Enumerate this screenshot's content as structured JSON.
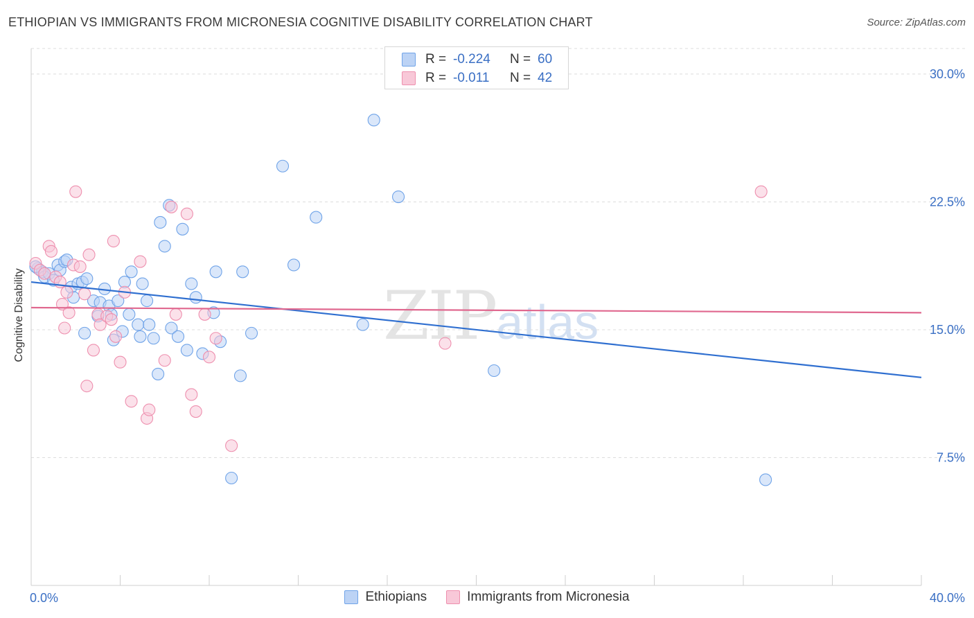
{
  "title": "ETHIOPIAN VS IMMIGRANTS FROM MICRONESIA COGNITIVE DISABILITY CORRELATION CHART",
  "source": "Source: ZipAtlas.com",
  "watermark": {
    "zip": "ZIP",
    "atlas": "atlas"
  },
  "legend": {
    "rows": [
      {
        "r_label": "R =",
        "r_value": "-0.224",
        "n_label": "N =",
        "n_value": "60"
      },
      {
        "r_label": "R =",
        "r_value": "-0.011",
        "n_label": "N =",
        "n_value": "42"
      }
    ]
  },
  "chart_data": {
    "type": "scatter",
    "xlabel": "",
    "ylabel": "Cognitive Disability",
    "xlim": [
      0,
      40
    ],
    "ylim": [
      0,
      31.5
    ],
    "x_tick_labels": [
      "0.0%",
      "40.0%"
    ],
    "y_ticks": [
      7.5,
      15.0,
      22.5,
      30.0
    ],
    "y_tick_labels": [
      "7.5%",
      "15.0%",
      "22.5%",
      "30.0%"
    ],
    "grid": "horizontal dashed",
    "legend_position": "bottom",
    "series": [
      {
        "name": "Ethiopians",
        "color": "#6fa3e8",
        "fill": "#bcd3f5",
        "trend": {
          "x": [
            0,
            40
          ],
          "y": [
            17.8,
            12.2
          ]
        },
        "points": [
          [
            0.3,
            18.6
          ],
          [
            0.5,
            18.4
          ],
          [
            0.6,
            18.1
          ],
          [
            0.8,
            18.3
          ],
          [
            1.0,
            17.9
          ],
          [
            1.2,
            18.8
          ],
          [
            1.3,
            18.5
          ],
          [
            1.5,
            19.0
          ],
          [
            1.6,
            19.1
          ],
          [
            1.8,
            17.5
          ],
          [
            1.9,
            16.9
          ],
          [
            2.1,
            17.7
          ],
          [
            2.3,
            17.8
          ],
          [
            2.5,
            18.0
          ],
          [
            2.4,
            14.8
          ],
          [
            2.8,
            16.7
          ],
          [
            3.0,
            15.8
          ],
          [
            3.1,
            16.6
          ],
          [
            3.3,
            17.4
          ],
          [
            3.5,
            16.4
          ],
          [
            3.6,
            15.9
          ],
          [
            3.7,
            14.4
          ],
          [
            3.9,
            16.7
          ],
          [
            4.1,
            14.9
          ],
          [
            4.2,
            17.8
          ],
          [
            4.4,
            15.9
          ],
          [
            4.5,
            18.4
          ],
          [
            4.8,
            15.3
          ],
          [
            4.9,
            14.6
          ],
          [
            5.0,
            17.7
          ],
          [
            5.2,
            16.7
          ],
          [
            5.3,
            15.3
          ],
          [
            5.5,
            14.5
          ],
          [
            5.7,
            12.4
          ],
          [
            5.8,
            21.3
          ],
          [
            6.0,
            19.9
          ],
          [
            6.2,
            22.3
          ],
          [
            6.3,
            15.1
          ],
          [
            6.6,
            14.6
          ],
          [
            6.8,
            20.9
          ],
          [
            7.0,
            13.8
          ],
          [
            7.2,
            17.7
          ],
          [
            7.4,
            16.9
          ],
          [
            7.7,
            13.6
          ],
          [
            8.2,
            16.0
          ],
          [
            8.3,
            18.4
          ],
          [
            8.5,
            14.3
          ],
          [
            9.0,
            6.3
          ],
          [
            9.4,
            12.3
          ],
          [
            9.5,
            18.4
          ],
          [
            9.9,
            14.8
          ],
          [
            11.3,
            24.6
          ],
          [
            11.8,
            18.8
          ],
          [
            12.8,
            21.6
          ],
          [
            14.9,
            15.3
          ],
          [
            15.4,
            27.3
          ],
          [
            16.5,
            22.8
          ],
          [
            20.8,
            12.6
          ],
          [
            33.0,
            6.2
          ],
          [
            0.2,
            18.7
          ]
        ]
      },
      {
        "name": "Immigrants from Micronesia",
        "color": "#ee8fae",
        "fill": "#f8c8d8",
        "trend": {
          "x": [
            0,
            40
          ],
          "y": [
            16.3,
            16.0
          ]
        },
        "points": [
          [
            0.2,
            18.9
          ],
          [
            0.4,
            18.5
          ],
          [
            0.6,
            18.3
          ],
          [
            0.8,
            19.9
          ],
          [
            0.9,
            19.6
          ],
          [
            1.1,
            18.1
          ],
          [
            1.3,
            17.8
          ],
          [
            1.4,
            16.5
          ],
          [
            1.5,
            15.1
          ],
          [
            1.6,
            17.2
          ],
          [
            1.7,
            16.0
          ],
          [
            1.9,
            18.8
          ],
          [
            2.0,
            23.1
          ],
          [
            2.2,
            18.7
          ],
          [
            2.4,
            17.1
          ],
          [
            2.5,
            11.7
          ],
          [
            2.6,
            19.4
          ],
          [
            2.8,
            13.8
          ],
          [
            3.0,
            15.9
          ],
          [
            3.1,
            15.3
          ],
          [
            3.4,
            15.8
          ],
          [
            3.6,
            15.6
          ],
          [
            3.7,
            20.2
          ],
          [
            3.8,
            14.6
          ],
          [
            4.0,
            13.1
          ],
          [
            4.2,
            17.2
          ],
          [
            4.5,
            10.8
          ],
          [
            4.9,
            19.0
          ],
          [
            5.2,
            9.8
          ],
          [
            5.3,
            10.3
          ],
          [
            6.0,
            13.2
          ],
          [
            6.3,
            22.2
          ],
          [
            6.5,
            15.9
          ],
          [
            7.0,
            21.8
          ],
          [
            7.2,
            11.2
          ],
          [
            7.4,
            10.2
          ],
          [
            7.8,
            15.9
          ],
          [
            8.0,
            13.4
          ],
          [
            8.3,
            14.5
          ],
          [
            9.0,
            8.2
          ],
          [
            18.6,
            14.2
          ],
          [
            32.8,
            23.1
          ]
        ]
      }
    ]
  }
}
